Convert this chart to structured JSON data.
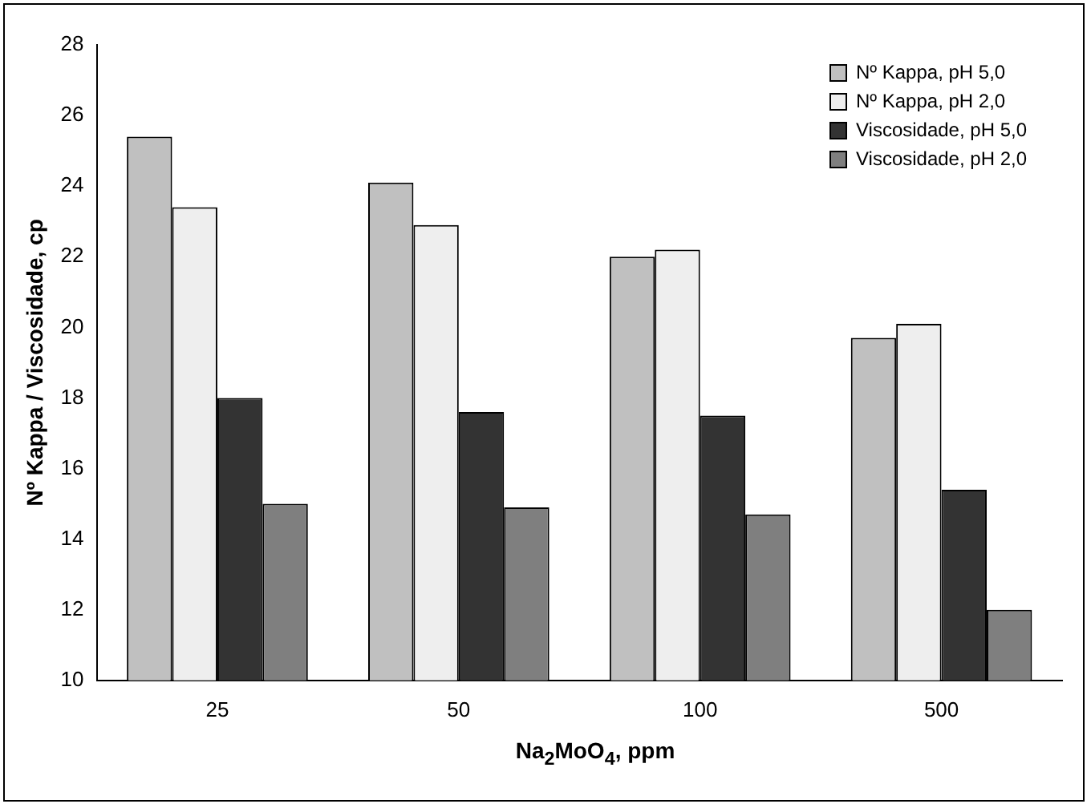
{
  "chart_data": {
    "type": "bar",
    "xlabel": "Na$_{2}$MoO$_{4}$, ppm",
    "ylabel": "Nº Kappa / Viscosidade, cp",
    "categories": [
      "25",
      "50",
      "100",
      "500"
    ],
    "series": [
      {
        "name": "Nº Kappa, pH 5,0",
        "color": "#c0c0c0",
        "values": [
          25.4,
          24.1,
          22.0,
          19.7
        ]
      },
      {
        "name": "Nº Kappa, pH 2,0",
        "color": "#eeeeee",
        "values": [
          23.4,
          22.9,
          22.2,
          20.1
        ]
      },
      {
        "name": "Viscosidade, pH 5,0",
        "color": "#333333",
        "values": [
          18.0,
          17.6,
          17.5,
          15.4
        ]
      },
      {
        "name": "Viscosidade, pH 2,0",
        "color": "#7f7f7f",
        "values": [
          15.0,
          14.9,
          14.7,
          12.0
        ]
      }
    ],
    "ylim": [
      10,
      28
    ],
    "yticks": [
      10,
      12,
      14,
      16,
      18,
      20,
      22,
      24,
      26,
      28
    ],
    "grid": false,
    "legend": "top right"
  }
}
